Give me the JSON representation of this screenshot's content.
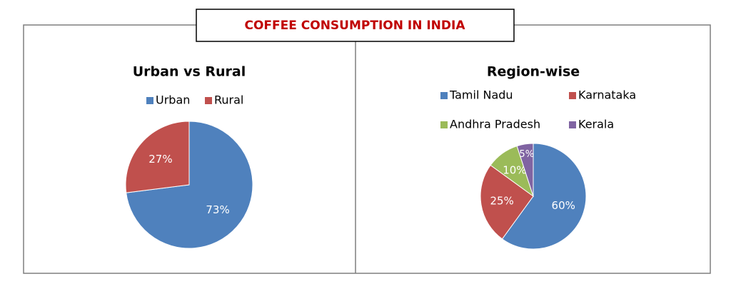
{
  "title": "COFFEE CONSUMPTION IN INDIA",
  "chart_data": [
    {
      "type": "pie",
      "title": "Urban vs Rural",
      "categories": [
        "Urban",
        "Rural"
      ],
      "values": [
        73,
        27
      ],
      "value_labels": [
        "73%",
        "27%"
      ],
      "colors": [
        "#4f81bd",
        "#c0504d"
      ]
    },
    {
      "type": "pie",
      "title": "Region-wise",
      "categories": [
        "Tamil Nadu",
        "Karnataka",
        "Andhra Pradesh",
        "Kerala"
      ],
      "values": [
        60,
        25,
        10,
        5
      ],
      "value_labels": [
        "60%",
        "25%",
        "10%",
        "5%"
      ],
      "colors": [
        "#4f81bd",
        "#c0504d",
        "#9bbb59",
        "#8064a2"
      ]
    }
  ]
}
